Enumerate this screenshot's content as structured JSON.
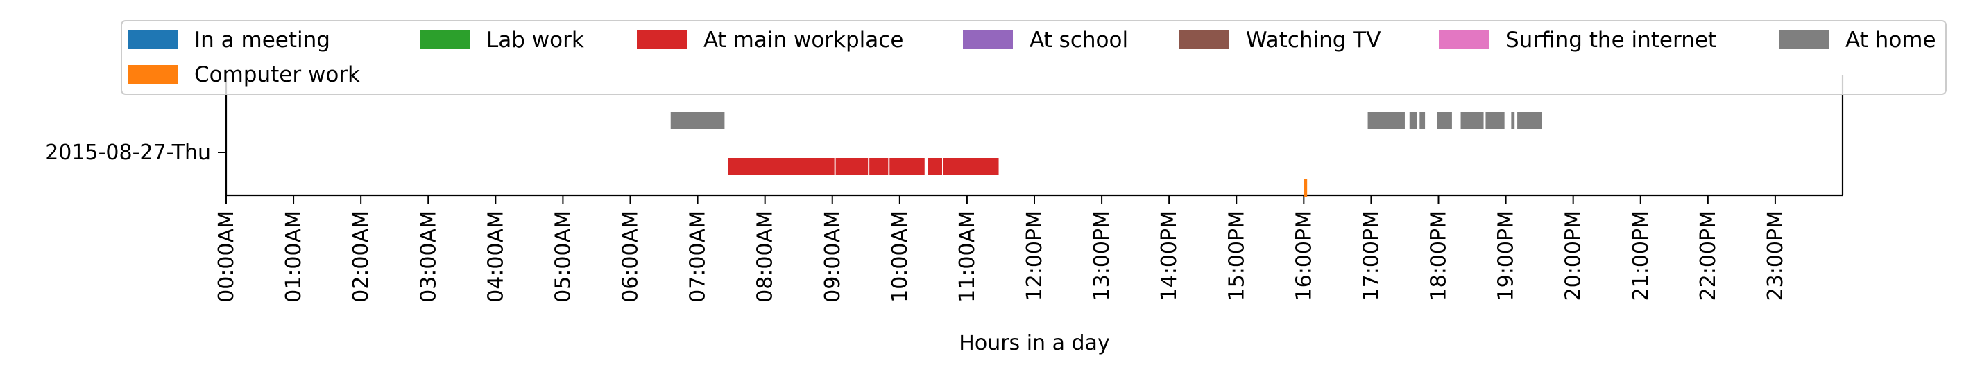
{
  "chart_data": {
    "type": "timeline",
    "xlabel": "Hours in a day",
    "xlim": [
      0,
      24
    ],
    "xticks": [
      "00:00AM",
      "01:00AM",
      "02:00AM",
      "03:00AM",
      "04:00AM",
      "05:00AM",
      "06:00AM",
      "07:00AM",
      "08:00AM",
      "09:00AM",
      "10:00AM",
      "11:00AM",
      "12:00PM",
      "13:00PM",
      "14:00PM",
      "15:00PM",
      "16:00PM",
      "17:00PM",
      "18:00PM",
      "19:00PM",
      "20:00PM",
      "21:00PM",
      "22:00PM",
      "23:00PM"
    ],
    "row_label": "2015-08-27-Thu",
    "legend_position": "top",
    "series": [
      {
        "name": "In a meeting",
        "color": "#1f77b4",
        "intervals": []
      },
      {
        "name": "Computer work",
        "color": "#ff7f0e",
        "intervals": [
          [
            16.0,
            16.05
          ]
        ]
      },
      {
        "name": "Lab work",
        "color": "#2ca02c",
        "intervals": []
      },
      {
        "name": "At main workplace",
        "color": "#d62728",
        "intervals": [
          [
            7.45,
            9.03
          ],
          [
            9.05,
            9.53
          ],
          [
            9.55,
            9.83
          ],
          [
            9.85,
            10.37
          ],
          [
            10.42,
            10.63
          ],
          [
            10.65,
            11.47
          ]
        ]
      },
      {
        "name": "At school",
        "color": "#9467bd",
        "intervals": []
      },
      {
        "name": "Watching TV",
        "color": "#8c564b",
        "intervals": []
      },
      {
        "name": "Surfing the internet",
        "color": "#e377c2",
        "intervals": []
      },
      {
        "name": "At home",
        "color": "#7f7f7f",
        "intervals": [
          [
            6.6,
            7.4
          ],
          [
            16.95,
            17.5
          ],
          [
            17.57,
            17.68
          ],
          [
            17.72,
            17.8
          ],
          [
            17.98,
            18.2
          ],
          [
            18.33,
            18.67
          ],
          [
            18.7,
            18.98
          ],
          [
            19.08,
            19.13
          ],
          [
            19.17,
            19.53
          ]
        ]
      }
    ]
  }
}
